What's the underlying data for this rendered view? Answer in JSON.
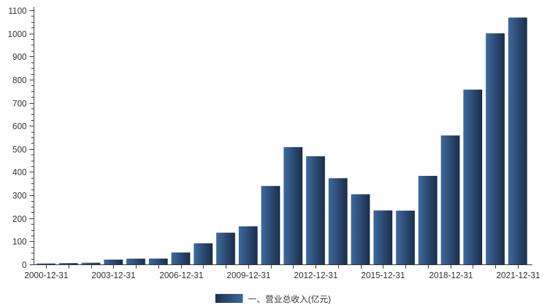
{
  "chart_data": {
    "type": "bar",
    "title": "",
    "categories": [
      "2000-12-31",
      "2001-12-31",
      "2002-12-31",
      "2003-12-31",
      "2004-12-31",
      "2005-12-31",
      "2006-12-31",
      "2007-12-31",
      "2008-12-31",
      "2009-12-31",
      "2010-12-31",
      "2011-12-31",
      "2012-12-31",
      "2013-12-31",
      "2014-12-31",
      "2015-12-31",
      "2016-12-31",
      "2017-12-31",
      "2018-12-31",
      "2019-12-31",
      "2020-12-31",
      "2021-12-31"
    ],
    "series": [
      {
        "name": "一、营业总收入(亿元)",
        "values": [
          3.9,
          5.6,
          7.2,
          20.9,
          25.1,
          25.4,
          51.8,
          91.4,
          137.5,
          165.0,
          339.6,
          507.8,
          468.3,
          373.3,
          303.7,
          233.7,
          232.8,
          383.3,
          558.2,
          756.7,
          1000.5,
          1068.7
        ]
      }
    ],
    "xlabel": "",
    "ylabel": "",
    "ylim": [
      0,
      1100
    ],
    "y_major_tick_step": 100,
    "y_minor_tick_step": 25,
    "y_tick_labels": [
      "0",
      "100",
      "200",
      "300",
      "400",
      "500",
      "600",
      "700",
      "800",
      "900",
      "1000",
      "1100"
    ],
    "x_tick_label_every": 3,
    "x_tick_labels_visible": [
      "2000-12-31",
      "2003-12-31",
      "2006-12-31",
      "2009-12-31",
      "2012-12-31",
      "2015-12-31",
      "2018-12-31",
      "2021-12-31"
    ],
    "grid": false,
    "legend_position": "bottom-center",
    "colors": {
      "bar_gradient_left": "#3d6a9e",
      "bar_gradient_right": "#1b2d4a",
      "legend_gradient_left": "#1d3150",
      "legend_gradient_right": "#3d6a9e",
      "axis": "#333333",
      "label": "#333333",
      "background": "#ffffff"
    }
  }
}
